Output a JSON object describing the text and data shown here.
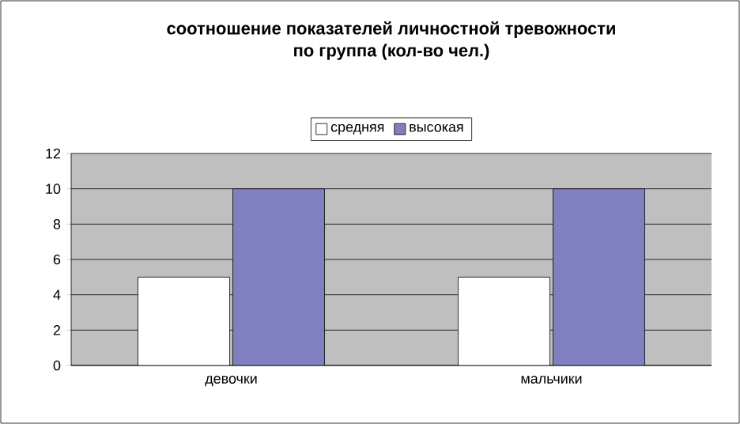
{
  "chart_data": {
    "type": "bar",
    "title": "соотношение показателей личностной тревожности по группа (кол-во чел.)",
    "categories": [
      "девочки",
      "мальчики"
    ],
    "series": [
      {
        "name": "средняя",
        "color": "#ffffff",
        "values": [
          5,
          5
        ]
      },
      {
        "name": "высокая",
        "color": "#8080c0",
        "values": [
          10,
          10
        ]
      }
    ],
    "ylim": [
      0,
      12
    ],
    "yticks": [
      0,
      2,
      4,
      6,
      8,
      10,
      12
    ],
    "grid": "y",
    "legend": "top"
  }
}
